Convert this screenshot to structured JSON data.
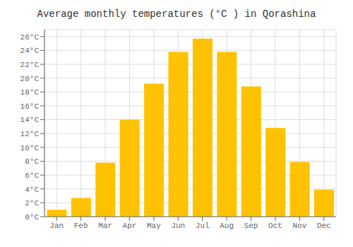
{
  "chart_data": {
    "type": "bar",
    "title": "Average monthly temperatures (°C ) in Qorashina",
    "categories": [
      "Jan",
      "Feb",
      "Mar",
      "Apr",
      "May",
      "Jun",
      "Jul",
      "Aug",
      "Sep",
      "Oct",
      "Nov",
      "Dec"
    ],
    "values": [
      1.0,
      2.7,
      7.8,
      14.0,
      19.2,
      23.8,
      25.7,
      23.8,
      18.8,
      12.8,
      7.9,
      3.9
    ],
    "color": "#FFC200",
    "ylim": [
      0,
      27
    ],
    "yticks": [
      {
        "value": 0,
        "label": "0°C"
      },
      {
        "value": 2,
        "label": "2°C"
      },
      {
        "value": 4,
        "label": "4°C"
      },
      {
        "value": 6,
        "label": "6°C"
      },
      {
        "value": 8,
        "label": "8°C"
      },
      {
        "value": 10,
        "label": "10°C"
      },
      {
        "value": 12,
        "label": "12°C"
      },
      {
        "value": 14,
        "label": "14°C"
      },
      {
        "value": 16,
        "label": "16°C"
      },
      {
        "value": 18,
        "label": "18°C"
      },
      {
        "value": 20,
        "label": "20°C"
      },
      {
        "value": 22,
        "label": "22°C"
      },
      {
        "value": 24,
        "label": "24°C"
      },
      {
        "value": 26,
        "label": "26°C"
      }
    ],
    "grid": true
  }
}
